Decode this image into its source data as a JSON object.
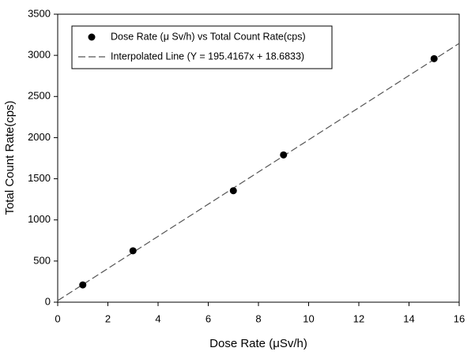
{
  "chart_data": {
    "type": "scatter",
    "x_label": "Dose Rate (μSv/h)",
    "y_label": "Total Count Rate(cps)",
    "xlim": [
      0,
      16
    ],
    "xticks": [
      0,
      2,
      4,
      6,
      8,
      10,
      12,
      14,
      16
    ],
    "ylim": [
      0,
      3500
    ],
    "yticks": [
      0,
      500,
      1000,
      1500,
      2000,
      2500,
      3000,
      3500
    ],
    "legend": "upper left",
    "series": [
      {
        "name": "Dose Rate (μ Sv/h) vs Total Count Rate(cps)",
        "type": "scatter",
        "color": "#000000",
        "x": [
          1,
          3,
          7,
          9,
          15
        ],
        "values": [
          210,
          625,
          1355,
          1790,
          2960
        ]
      },
      {
        "name": "Interpolated Line (Y = 195.4167x + 18.6833)",
        "type": "line",
        "color": "#555555",
        "dashed": true,
        "x": [
          0,
          16
        ],
        "values": [
          18.7,
          3145.3
        ]
      }
    ]
  }
}
